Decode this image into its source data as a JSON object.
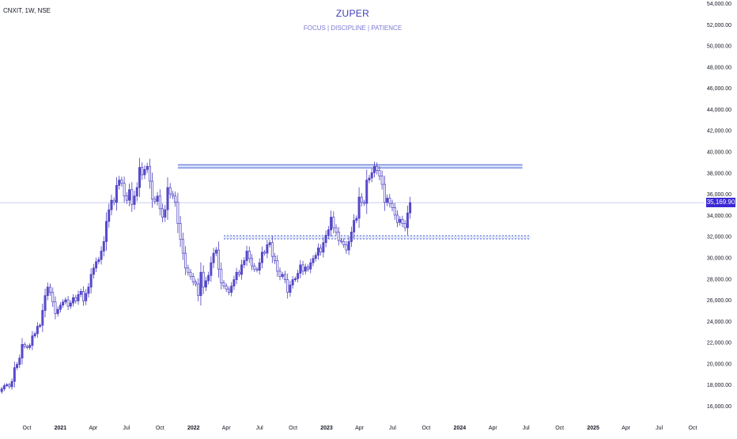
{
  "header": {
    "symbol": "CNXIT, 1W, NSE",
    "title": "ZUPER",
    "subtitle": "FOCUS | DISCIPLINE | PATIENCE"
  },
  "price_tag": {
    "label": "35,169.90",
    "value": 35169.9,
    "color": "#3a28d4"
  },
  "colors": {
    "up": "#5b4bd0",
    "down": "#ffffff",
    "wick": "#4a3ec0",
    "hline": "#4a63d8",
    "zone": "#c9d4f5"
  },
  "chart_data": {
    "type": "candlestick",
    "title": "ZUPER",
    "subtitle": "FOCUS | DISCIPLINE | PATIENCE",
    "ylim": [
      16000,
      54000
    ],
    "y_ticks": [
      16000,
      18000,
      20000,
      22000,
      24000,
      26000,
      28000,
      30000,
      32000,
      34000,
      36000,
      38000,
      40000,
      42000,
      44000,
      46000,
      48000,
      50000,
      52000,
      54000
    ],
    "y_tick_labels": [
      "16,000.00",
      "18,000.00",
      "20,000.00",
      "22,000.00",
      "24,000.00",
      "26,000.00",
      "28,000.00",
      "30,000.00",
      "32,000.00",
      "34,000.00",
      "36,000.00",
      "38,000.00",
      "40,000.00",
      "42,000.00",
      "44,000.00",
      "46,000.00",
      "48,000.00",
      "50,000.00",
      "52,000.00",
      "54,000.00"
    ],
    "x_ticks": [
      {
        "label": "Oct",
        "date": "2020-10-01"
      },
      {
        "label": "2021",
        "date": "2021-01-01"
      },
      {
        "label": "Apr",
        "date": "2021-04-01"
      },
      {
        "label": "Jul",
        "date": "2021-07-01"
      },
      {
        "label": "Oct",
        "date": "2021-10-01"
      },
      {
        "label": "2022",
        "date": "2022-01-01"
      },
      {
        "label": "Apr",
        "date": "2022-04-01"
      },
      {
        "label": "Jul",
        "date": "2022-07-01"
      },
      {
        "label": "Oct",
        "date": "2022-10-01"
      },
      {
        "label": "2023",
        "date": "2023-01-01"
      },
      {
        "label": "Apr",
        "date": "2023-04-01"
      },
      {
        "label": "Jul",
        "date": "2023-07-01"
      },
      {
        "label": "Oct",
        "date": "2023-10-01"
      },
      {
        "label": "2024",
        "date": "2024-01-01"
      },
      {
        "label": "Apr",
        "date": "2024-04-01"
      },
      {
        "label": "Jul",
        "date": "2024-07-01"
      },
      {
        "label": "Oct",
        "date": "2024-10-01"
      },
      {
        "label": "2025",
        "date": "2025-01-01"
      },
      {
        "label": "Apr",
        "date": "2025-04-01"
      },
      {
        "label": "Jul",
        "date": "2025-07-01"
      },
      {
        "label": "Oct",
        "date": "2025-10-01"
      }
    ],
    "candle_interval": "1W",
    "first_date": "2020-07-24",
    "closes": [
      17600,
      17900,
      18000,
      17800,
      18300,
      19600,
      19900,
      20500,
      21800,
      21600,
      21500,
      21700,
      22600,
      22800,
      23500,
      23600,
      25000,
      26400,
      27200,
      26700,
      25800,
      24700,
      25100,
      25500,
      25800,
      26000,
      25400,
      25700,
      26200,
      25900,
      26500,
      26800,
      25900,
      26600,
      27200,
      28400,
      29000,
      29600,
      29800,
      30600,
      31500,
      33400,
      34500,
      35400,
      35200,
      36800,
      37300,
      37000,
      35800,
      35400,
      36400,
      35000,
      35800,
      36600,
      38500,
      37800,
      38300,
      38600,
      37200,
      35500,
      35300,
      35800,
      34600,
      33800,
      34500,
      36600,
      36000,
      35800,
      35200,
      33200,
      31700,
      30400,
      29000,
      28600,
      28200,
      27700,
      27500,
      26400,
      28600,
      27200,
      27800,
      28300,
      29500,
      30400,
      30700,
      28900,
      27600,
      27300,
      27000,
      26700,
      27300,
      27900,
      28600,
      28400,
      29300,
      29700,
      30600,
      29900,
      29200,
      28900,
      28800,
      29500,
      30500,
      30400,
      31200,
      31400,
      30100,
      29700,
      28700,
      28200,
      28400,
      27900,
      26700,
      27400,
      27900,
      28000,
      28500,
      29300,
      28700,
      29100,
      28900,
      29500,
      29900,
      30200,
      30900,
      30500,
      31400,
      32100,
      32600,
      33800,
      32800,
      32400,
      31600,
      31500,
      31200,
      30700,
      31500,
      32400,
      33500,
      33700,
      35700,
      35200,
      35100,
      37300,
      37500,
      38000,
      38600,
      38200,
      37700,
      36900,
      35200,
      35600,
      35100,
      34700,
      34000,
      33300,
      33600,
      33200,
      32800,
      34200,
      35169.9
    ],
    "horizontal_levels": [
      {
        "from": "2021-11-19",
        "to": "2024-06-21",
        "value": 38600,
        "style": "double-zone"
      },
      {
        "from": "2022-03-25",
        "to": "2024-07-12",
        "value": 31900,
        "style": "dashed-zone"
      }
    ],
    "last_price": 35169.9,
    "last_price_label": "35,169.90",
    "grid": false
  }
}
